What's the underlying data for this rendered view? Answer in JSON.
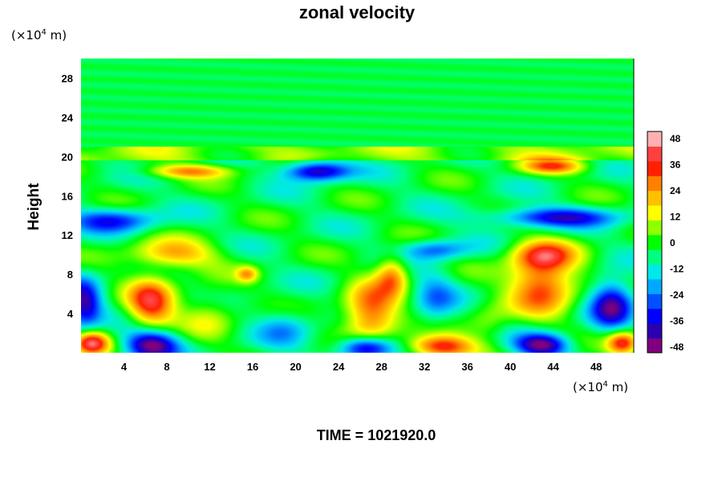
{
  "chart_data": {
    "type": "heatmap",
    "title": "zonal velocity",
    "ylabel": "Height",
    "xunit": {
      "prefix": "(×10",
      "exp": "4",
      "suffix": " m)"
    },
    "yunit": {
      "prefix": "(×10",
      "exp": "4",
      "suffix": " m)"
    },
    "xlim": [
      0,
      51.5
    ],
    "ylim": [
      0,
      30
    ],
    "xticks": [
      "4",
      "8",
      "12",
      "16",
      "20",
      "24",
      "28",
      "32",
      "36",
      "40",
      "44",
      "48"
    ],
    "yticks": [
      "4",
      "8",
      "12",
      "16",
      "20",
      "24",
      "28"
    ],
    "colorbar": {
      "ticks": [
        "48",
        "36",
        "24",
        "12",
        "0",
        "-12",
        "-24",
        "-36",
        "-48"
      ],
      "range": [
        -51,
        51
      ],
      "colors": [
        "#800080",
        "#2a00b0",
        "#0000ff",
        "#0050ff",
        "#00a8ff",
        "#00e8e8",
        "#00ff80",
        "#00ff00",
        "#90ff00",
        "#ffff00",
        "#ffc000",
        "#ff8000",
        "#ff2000",
        "#ff4040",
        "#ffb0b0"
      ]
    },
    "background_value": -4,
    "features": [
      {
        "x": 6.5,
        "y": 5,
        "value": 42,
        "rx": 2.2,
        "ry": 2.5
      },
      {
        "x": 8.5,
        "y": 10,
        "value": 28,
        "rx": 4,
        "ry": 1.5
      },
      {
        "x": 6.5,
        "y": 0.8,
        "value": -48,
        "rx": 2.5,
        "ry": 1.5
      },
      {
        "x": 0.3,
        "y": 5,
        "value": -40,
        "rx": 1.6,
        "ry": 2.5
      },
      {
        "x": 1,
        "y": 1,
        "value": 46,
        "rx": 1.6,
        "ry": 1.2
      },
      {
        "x": 3,
        "y": 13.5,
        "value": -30,
        "rx": 4,
        "ry": 1.2
      },
      {
        "x": 10,
        "y": 18.5,
        "value": 30,
        "rx": 4,
        "ry": 0.7
      },
      {
        "x": 22,
        "y": 18.5,
        "value": -44,
        "rx": 3,
        "ry": 1
      },
      {
        "x": 27,
        "y": 4,
        "value": 40,
        "rx": 2.5,
        "ry": 3
      },
      {
        "x": 29,
        "y": 8,
        "value": 30,
        "rx": 1.5,
        "ry": 2
      },
      {
        "x": 26.5,
        "y": 0.5,
        "value": -48,
        "rx": 2.5,
        "ry": 1.2
      },
      {
        "x": 33.5,
        "y": 0.6,
        "value": 46,
        "rx": 3,
        "ry": 1.2
      },
      {
        "x": 43,
        "y": 7,
        "value": 42,
        "rx": 3,
        "ry": 3
      },
      {
        "x": 43,
        "y": 10,
        "value": 30,
        "rx": 3,
        "ry": 1.5
      },
      {
        "x": 43,
        "y": 0.8,
        "value": -48,
        "rx": 2.5,
        "ry": 1.2
      },
      {
        "x": 49.5,
        "y": 5,
        "value": -42,
        "rx": 2,
        "ry": 2.5
      },
      {
        "x": 50.5,
        "y": 1,
        "value": 46,
        "rx": 1.5,
        "ry": 1.2
      },
      {
        "x": 44,
        "y": 19,
        "value": 34,
        "rx": 3,
        "ry": 0.8
      },
      {
        "x": 44,
        "y": 13.8,
        "value": -34,
        "rx": 6,
        "ry": 1
      },
      {
        "x": 33,
        "y": 10.5,
        "value": -24,
        "rx": 3,
        "ry": 1
      },
      {
        "x": 19,
        "y": 2.5,
        "value": -16,
        "rx": 2.5,
        "ry": 2
      },
      {
        "x": 33,
        "y": 5.5,
        "value": -18,
        "rx": 2,
        "ry": 3
      },
      {
        "x": 15.5,
        "y": 8,
        "value": 24,
        "rx": 1,
        "ry": 0.8
      },
      {
        "x": 12,
        "y": 4,
        "value": 14,
        "rx": 2.5,
        "ry": 2.5
      },
      {
        "x": 38,
        "y": 3,
        "value": 12,
        "rx": 2,
        "ry": 2
      }
    ]
  },
  "footer": {
    "time_label": "TIME = 1021920.0"
  }
}
